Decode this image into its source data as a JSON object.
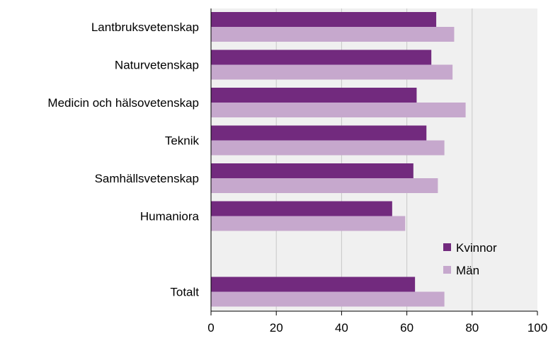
{
  "chart_data": {
    "type": "bar",
    "orientation": "horizontal",
    "title": "",
    "xlabel": "",
    "ylabel": "",
    "categories": [
      "Lantbruksvetenskap",
      "Naturvetenskap",
      "Medicin och hälsovetenskap",
      "Teknik",
      "Samhällsvetenskap",
      "Humaniora",
      "",
      "Totalt"
    ],
    "series": [
      {
        "name": "Kvinnor",
        "color": "#722a7e",
        "values": [
          69,
          67.5,
          63,
          66,
          62,
          55.5,
          null,
          62.5
        ]
      },
      {
        "name": "Män",
        "color": "#c6a8cd",
        "values": [
          74.5,
          74,
          78,
          71.5,
          69.5,
          59.5,
          null,
          71.5
        ]
      }
    ],
    "xlim": [
      0,
      100
    ],
    "xticks": [
      0,
      20,
      40,
      60,
      80,
      100
    ],
    "grid": true,
    "plot_background": "#f0f0f0",
    "legend": {
      "placement": "bottom-right",
      "entries": [
        "Kvinnor",
        "Män"
      ]
    }
  }
}
